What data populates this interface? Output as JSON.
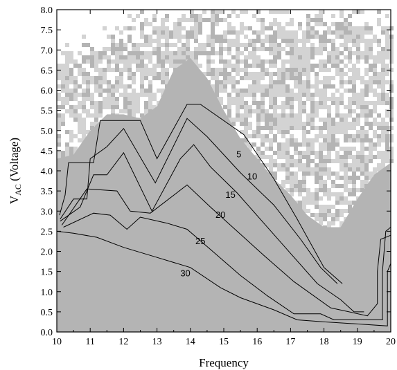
{
  "chart_data": {
    "type": "contour",
    "xlabel": "Frequency",
    "ylabel_main": "V",
    "ylabel_sub": "AC",
    "ylabel_rest": " (Voltage)",
    "xlim": [
      10,
      20
    ],
    "ylim": [
      0,
      8
    ],
    "x_ticks": [
      "10",
      "11",
      "12",
      "13",
      "14",
      "15",
      "16",
      "17",
      "18",
      "19",
      "20"
    ],
    "y_ticks": [
      "0.0",
      "0.5",
      "1.0",
      "1.5",
      "2.0",
      "2.5",
      "3.0",
      "3.5",
      "4.0",
      "4.5",
      "5.0",
      "5.5",
      "6.0",
      "6.5",
      "7.0",
      "7.5",
      "8.0"
    ],
    "colors": {
      "background": "#ffffff",
      "light_gray": "#d3d3d3",
      "medium_gray": "#b4b4b4",
      "line": "#000000"
    },
    "regions": {
      "medium_gray_boundary": [
        [
          10,
          4.3
        ],
        [
          10.5,
          4.4
        ],
        [
          11,
          5.0
        ],
        [
          11.5,
          5.4
        ],
        [
          12,
          5.4
        ],
        [
          12.5,
          5.3
        ],
        [
          13,
          5.6
        ],
        [
          13.5,
          6.5
        ],
        [
          14,
          6.8
        ],
        [
          14.5,
          6.3
        ],
        [
          15,
          5.5
        ],
        [
          15.5,
          4.8
        ],
        [
          16,
          4.3
        ],
        [
          16.5,
          3.8
        ],
        [
          17,
          3.4
        ],
        [
          17.5,
          2.9
        ],
        [
          18,
          2.6
        ],
        [
          18.5,
          2.6
        ],
        [
          19,
          3.3
        ],
        [
          19.5,
          3.9
        ],
        [
          20,
          4.2
        ]
      ],
      "light_gray_boundary": [
        [
          10,
          6.7
        ],
        [
          11,
          6.9
        ],
        [
          12,
          7.2
        ],
        [
          13,
          7.6
        ],
        [
          14,
          7.9
        ],
        [
          15,
          7.7
        ],
        [
          16,
          7.6
        ],
        [
          17,
          7.5
        ],
        [
          18,
          7.8
        ],
        [
          19,
          7.6
        ],
        [
          20,
          7.5
        ]
      ]
    },
    "contours": [
      {
        "label": "5",
        "label_at": [
          15.45,
          4.4
        ],
        "points": [
          [
            10.08,
            2.9
          ],
          [
            10.25,
            3.4
          ],
          [
            10.35,
            4.2
          ],
          [
            11.1,
            4.2
          ],
          [
            11.3,
            5.25
          ],
          [
            12.5,
            5.25
          ],
          [
            13,
            4.3
          ],
          [
            13.9,
            5.65
          ],
          [
            14.3,
            5.65
          ],
          [
            15.6,
            4.9
          ],
          [
            16.5,
            3.8
          ],
          [
            17.2,
            2.8
          ],
          [
            18,
            1.6
          ],
          [
            18.55,
            1.2
          ]
        ]
      },
      {
        "label": "10",
        "label_at": [
          15.85,
          3.85
        ],
        "points": [
          [
            10.1,
            2.8
          ],
          [
            10.5,
            3.3
          ],
          [
            10.9,
            3.3
          ],
          [
            11,
            4.3
          ],
          [
            11.5,
            4.6
          ],
          [
            12,
            5.05
          ],
          [
            12.95,
            3.7
          ],
          [
            13.9,
            5.3
          ],
          [
            14.5,
            4.85
          ],
          [
            15.5,
            3.95
          ],
          [
            16.5,
            3.15
          ],
          [
            17.3,
            2.3
          ],
          [
            17.9,
            1.6
          ],
          [
            18.4,
            1.2
          ]
        ]
      },
      {
        "label": "15",
        "label_at": [
          15.2,
          3.4
        ],
        "points": [
          [
            10.1,
            2.75
          ],
          [
            10.7,
            3.1
          ],
          [
            11.1,
            3.9
          ],
          [
            11.5,
            3.9
          ],
          [
            12,
            4.45
          ],
          [
            12.85,
            3.0
          ],
          [
            13.7,
            4.3
          ],
          [
            14.1,
            4.65
          ],
          [
            14.6,
            4.1
          ],
          [
            15.4,
            3.45
          ],
          [
            16.2,
            2.7
          ],
          [
            17,
            1.95
          ],
          [
            17.8,
            1.2
          ],
          [
            18.5,
            0.8
          ],
          [
            18.9,
            0.5
          ],
          [
            19.2,
            0.5
          ]
        ]
      },
      {
        "label": "20",
        "label_at": [
          14.9,
          2.9
        ],
        "points": [
          [
            10.15,
            2.65
          ],
          [
            10.9,
            3.55
          ],
          [
            11.8,
            3.5
          ],
          [
            12.2,
            3.0
          ],
          [
            12.8,
            2.95
          ],
          [
            13.9,
            3.65
          ],
          [
            14.6,
            3.1
          ],
          [
            15.4,
            2.5
          ],
          [
            16.2,
            1.9
          ],
          [
            17.1,
            1.25
          ],
          [
            18.2,
            0.6
          ],
          [
            19.3,
            0.4
          ],
          [
            19.6,
            0.7
          ],
          [
            19.6,
            1.5
          ],
          [
            19.7,
            2.3
          ],
          [
            20,
            2.4
          ]
        ]
      },
      {
        "label": "25",
        "label_at": [
          14.3,
          2.25
        ],
        "points": [
          [
            10.2,
            2.6
          ],
          [
            11.1,
            2.95
          ],
          [
            11.6,
            2.9
          ],
          [
            12.1,
            2.55
          ],
          [
            12.5,
            2.85
          ],
          [
            13.3,
            2.7
          ],
          [
            13.9,
            2.55
          ],
          [
            14.6,
            2.05
          ],
          [
            15.5,
            1.4
          ],
          [
            16.3,
            0.9
          ],
          [
            17.1,
            0.45
          ],
          [
            17.9,
            0.45
          ],
          [
            18.3,
            0.3
          ],
          [
            19,
            0.3
          ],
          [
            19.75,
            0.3
          ],
          [
            19.75,
            1.5
          ],
          [
            19.85,
            2.5
          ],
          [
            20,
            2.6
          ]
        ]
      },
      {
        "label": "30",
        "label_at": [
          13.85,
          1.45
        ],
        "points": [
          [
            10,
            2.5
          ],
          [
            10.5,
            2.45
          ],
          [
            11.2,
            2.35
          ],
          [
            12,
            2.1
          ],
          [
            13,
            1.85
          ],
          [
            14,
            1.6
          ],
          [
            14.9,
            1.1
          ],
          [
            15.5,
            0.85
          ],
          [
            16.5,
            0.55
          ],
          [
            17.2,
            0.3
          ],
          [
            18,
            0.25
          ],
          [
            19,
            0.2
          ],
          [
            19.9,
            0.15
          ],
          [
            19.9,
            1.5
          ],
          [
            20,
            1.7
          ]
        ]
      }
    ]
  }
}
